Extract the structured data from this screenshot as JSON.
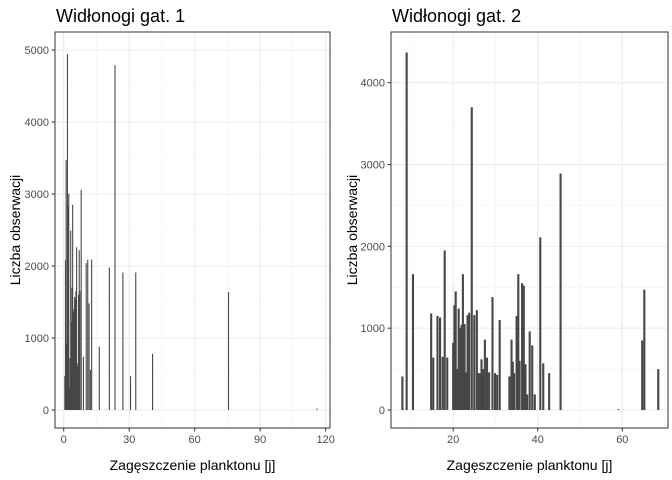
{
  "chart_data": [
    {
      "type": "bar",
      "title": "Widłonogi gat. 1",
      "xlabel": "Zagęszczenie planktonu [j]",
      "ylabel": "Liczba obserwacji",
      "xlim": [
        -4,
        122
      ],
      "ylim": [
        -250,
        5250
      ],
      "xticks": [
        0,
        30,
        60,
        90,
        120
      ],
      "yticks": [
        0,
        1000,
        2000,
        3000,
        4000,
        5000
      ],
      "xtick_labels": [
        "0",
        "30",
        "60",
        "90",
        "120"
      ],
      "ytick_labels": [
        "0",
        "1000",
        "2000",
        "3000",
        "4000",
        "5000"
      ],
      "grid": true,
      "bar_width": 0.5,
      "x": [
        0.5,
        0.8,
        1.1,
        1.4,
        1.7,
        2.0,
        2.3,
        2.6,
        2.9,
        3.2,
        3.5,
        3.8,
        4.1,
        4.4,
        4.7,
        5.0,
        5.3,
        5.6,
        5.9,
        6.2,
        6.5,
        6.8,
        7.1,
        7.4,
        8.0,
        9.0,
        10.3,
        11.0,
        11.6,
        12.2,
        12.8,
        16.3,
        20.9,
        23.5,
        27.1,
        30.6,
        33.0,
        40.7,
        75.5,
        116.0
      ],
      "values": [
        470,
        2080,
        3470,
        920,
        4940,
        2830,
        3000,
        320,
        720,
        2490,
        1220,
        1700,
        2850,
        1360,
        1400,
        1570,
        1540,
        1650,
        2260,
        600,
        650,
        1600,
        2220,
        1650,
        3060,
        740,
        2040,
        2090,
        1480,
        560,
        2090,
        880,
        1980,
        4790,
        1910,
        470,
        1910,
        780,
        1640,
        20
      ]
    },
    {
      "type": "bar",
      "title": "Widłonogi gat. 2",
      "xlabel": "Zagęszczenie planktonu [j]",
      "ylabel": "Liczba obserwacji",
      "xlim": [
        5.3,
        70.8
      ],
      "ylim": [
        -220,
        4620
      ],
      "xticks": [
        20,
        40,
        60
      ],
      "yticks": [
        0,
        1000,
        2000,
        3000,
        4000
      ],
      "xtick_labels": [
        "20",
        "40",
        "60"
      ],
      "ytick_labels": [
        "0",
        "1000",
        "2000",
        "3000",
        "4000"
      ],
      "grid": true,
      "bar_width": 0.5,
      "x": [
        8.0,
        9.0,
        10.5,
        14.8,
        15.3,
        16.3,
        16.9,
        17.5,
        18.0,
        18.6,
        20.0,
        20.3,
        20.6,
        21.0,
        21.3,
        21.7,
        22.0,
        22.3,
        22.7,
        23.1,
        23.4,
        23.8,
        24.4,
        25.0,
        25.6,
        26.0,
        26.4,
        26.7,
        27.1,
        27.5,
        28.0,
        28.5,
        29.3,
        29.9,
        30.4,
        31.0,
        33.3,
        33.8,
        34.1,
        34.4,
        35.0,
        35.4,
        35.7,
        36.3,
        36.7,
        37.1,
        37.5,
        38.1,
        38.7,
        39.3,
        40.6,
        41.3,
        42.7,
        45.4,
        59.1,
        64.7,
        65.2,
        68.5
      ],
      "values": [
        410,
        4370,
        1660,
        1180,
        640,
        1150,
        1130,
        650,
        1950,
        640,
        820,
        1280,
        1450,
        500,
        1240,
        1000,
        1040,
        1660,
        1050,
        460,
        1160,
        1190,
        3700,
        1160,
        1220,
        450,
        450,
        620,
        500,
        860,
        640,
        460,
        1380,
        450,
        430,
        1100,
        410,
        860,
        590,
        450,
        1150,
        1660,
        600,
        1550,
        1520,
        560,
        190,
        960,
        790,
        190,
        2110,
        570,
        450,
        2890,
        10,
        850,
        1470,
        500
      ]
    }
  ]
}
